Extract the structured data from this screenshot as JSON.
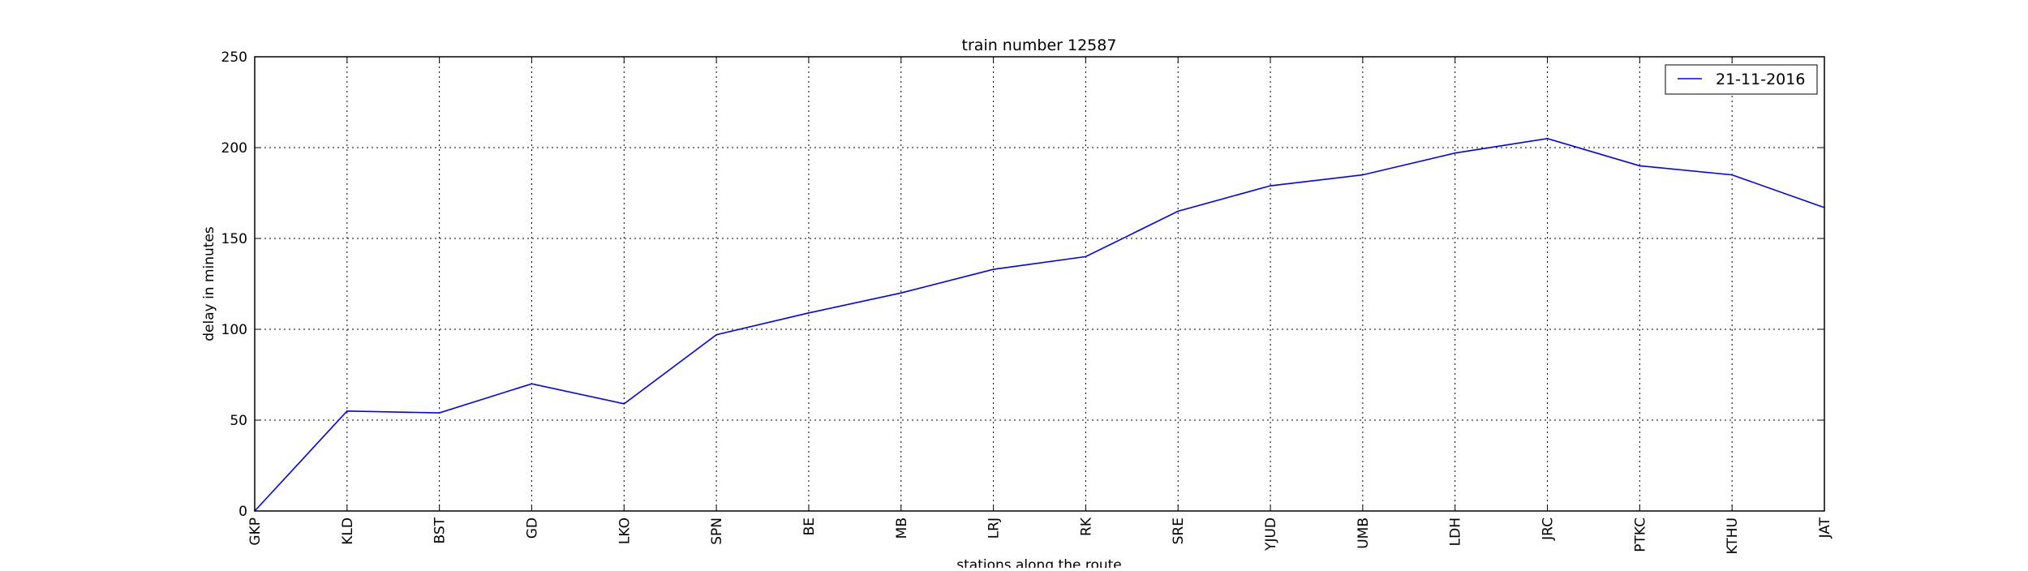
{
  "chart_data": {
    "type": "line",
    "title": "train number 12587",
    "xlabel": "stations along the route",
    "ylabel": "delay in minutes",
    "categories": [
      "GKP",
      "KLD",
      "BST",
      "GD",
      "LKO",
      "SPN",
      "BE",
      "MB",
      "LRJ",
      "RK",
      "SRE",
      "YJUD",
      "UMB",
      "LDH",
      "JRC",
      "PTKC",
      "KTHU",
      "JAT"
    ],
    "series": [
      {
        "name": "21-11-2016",
        "color": "#0000ff",
        "values": [
          0,
          55,
          54,
          70,
          59,
          97,
          109,
          120,
          133,
          140,
          165,
          179,
          185,
          197,
          205,
          190,
          185,
          167
        ]
      }
    ],
    "ylim": [
      0,
      250
    ],
    "yticks": [
      0,
      50,
      100,
      150,
      200,
      250
    ],
    "grid": true,
    "legend_position": "top-right"
  }
}
